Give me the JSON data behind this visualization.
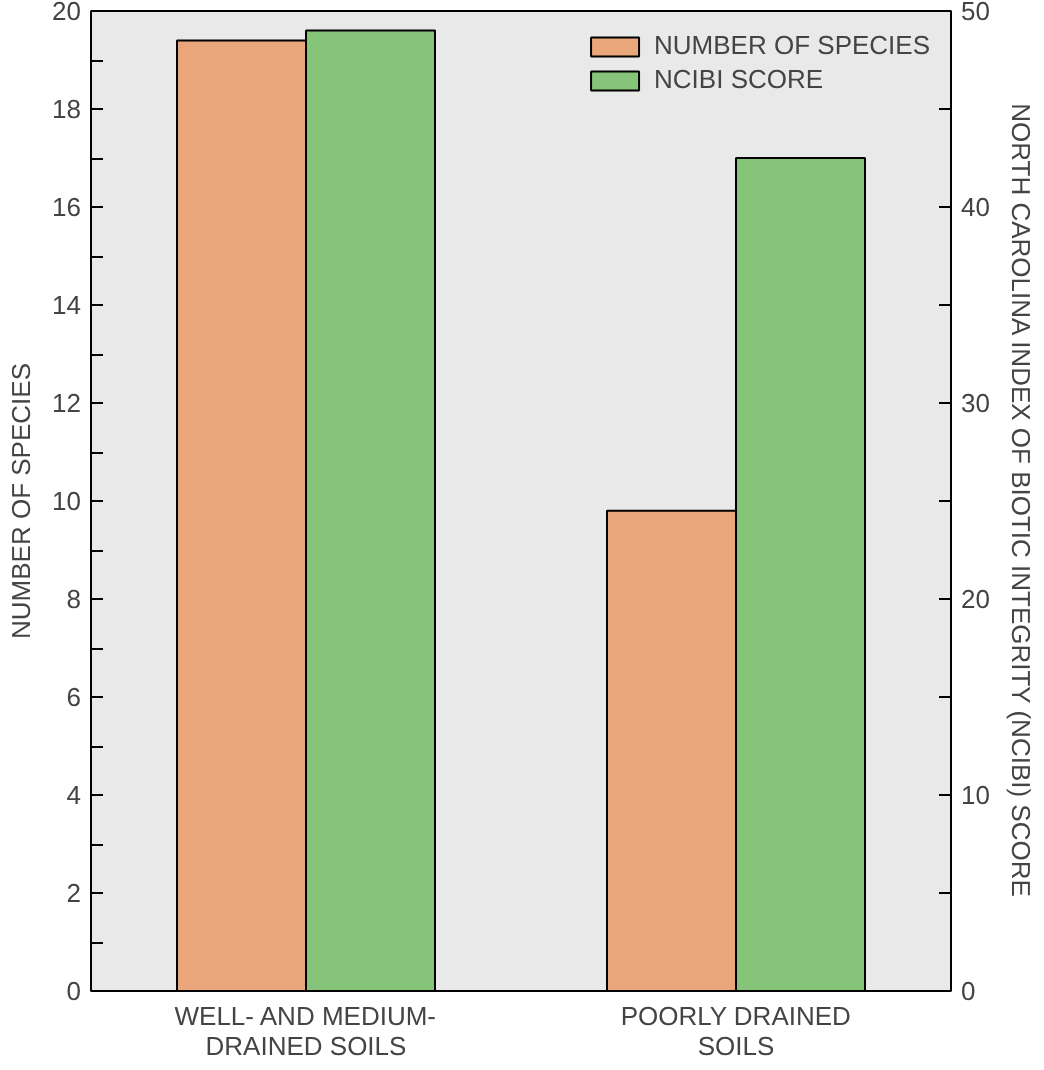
{
  "chart_data": {
    "type": "bar",
    "categories": [
      "WELL- AND MEDIUM-\nDRAINED SOILS",
      "POORLY DRAINED\nSOILS"
    ],
    "ylabel": "NUMBER OF SPECIES",
    "y2label": "NORTH CAROLINA INDEX OF BIOTIC INTEGRITY (NCIBI) SCORE",
    "series": [
      {
        "name": "NUMBER OF SPECIES",
        "color": "#e8a67a",
        "values": [
          19.4,
          9.8
        ]
      },
      {
        "name": "NCIBI SCORE",
        "color": "#86c47a",
        "values": [
          49,
          42.5
        ],
        "axis": "y2"
      }
    ],
    "ylim": [
      0,
      20
    ],
    "yticks": [
      0,
      {
        "value": 1,
        "label": null
      },
      2,
      {
        "value": 3,
        "label": null
      },
      4,
      {
        "value": 5,
        "label": null
      },
      6,
      {
        "value": 7,
        "label": null
      },
      8,
      {
        "value": 9,
        "label": null
      },
      10,
      {
        "value": 11,
        "label": null
      },
      12,
      {
        "value": 13,
        "label": null
      },
      14,
      {
        "value": 15,
        "label": null
      },
      16,
      {
        "value": 17,
        "label": null
      },
      18,
      {
        "value": 19,
        "label": null
      },
      20
    ],
    "y2lim": [
      0,
      50
    ],
    "y2ticks": [
      0,
      {
        "value": 5,
        "label": null
      },
      10,
      {
        "value": 15,
        "label": null
      },
      20,
      {
        "value": 25,
        "label": null
      },
      30,
      {
        "value": 35,
        "label": null
      },
      40,
      {
        "value": 45,
        "label": null
      },
      50
    ],
    "grid": false,
    "legend": "top right"
  }
}
